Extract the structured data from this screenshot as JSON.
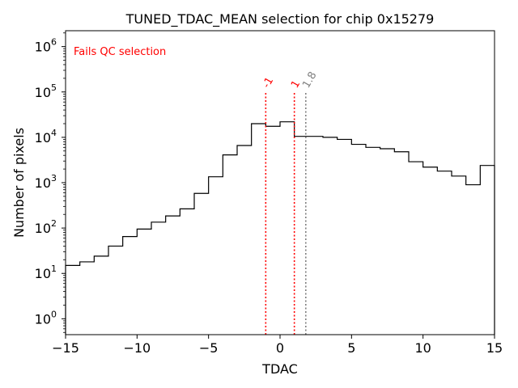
{
  "chart_data": {
    "type": "histogram",
    "title": "TUNED_TDAC_MEAN selection for chip 0x15279",
    "xlabel": "TDAC",
    "ylabel": "Number of pixels",
    "xlim": [
      -15,
      15
    ],
    "ylim_log10": [
      -0.35,
      6.35
    ],
    "yscale": "log",
    "x_ticks": [
      -15,
      -10,
      -5,
      0,
      5,
      10,
      15
    ],
    "x_tick_labels": [
      "−15",
      "−10",
      "−5",
      "0",
      "5",
      "10",
      "15"
    ],
    "y_ticks_exp": [
      0,
      1,
      2,
      3,
      4,
      5,
      6
    ],
    "y_tick_base": "10",
    "bin_edges": [
      -15,
      -14,
      -13,
      -12,
      -11,
      -10,
      -9,
      -8,
      -7,
      -6,
      -5,
      -4,
      -3,
      -2,
      -1,
      0,
      1,
      2,
      3,
      4,
      5,
      6,
      7,
      8,
      9,
      10,
      11,
      12,
      13,
      14,
      15
    ],
    "counts": [
      15,
      18,
      24,
      40,
      65,
      95,
      135,
      185,
      265,
      580,
      1350,
      4100,
      6600,
      20000,
      17500,
      22000,
      10500,
      10500,
      10000,
      9000,
      7000,
      6000,
      5600,
      4800,
      2900,
      2200,
      1800,
      1400,
      900,
      2400
    ],
    "annotation": {
      "text": "Fails QC selection",
      "color": "#ff0000"
    },
    "vlines": [
      {
        "x": -1,
        "label": "-1",
        "color": "#ff0000"
      },
      {
        "x": 1,
        "label": "1",
        "color": "#ff0000"
      },
      {
        "x": 1.8,
        "label": "1.8",
        "color": "#808080"
      }
    ],
    "colors": {
      "histogram": "#000000",
      "fail": "#ff0000",
      "threshold": "#808080"
    }
  }
}
